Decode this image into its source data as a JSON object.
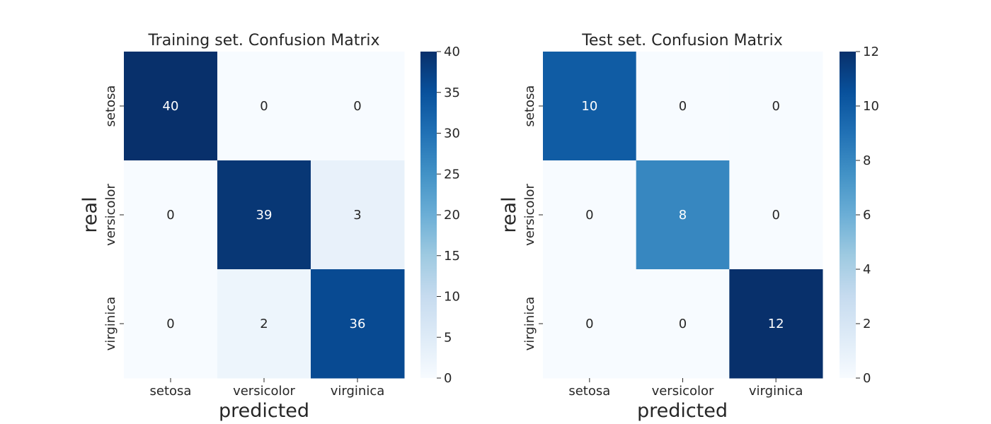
{
  "chart_data": [
    {
      "type": "heatmap",
      "title": "Training set. Confusion Matrix",
      "xlabel": "predicted",
      "ylabel": "real",
      "x_categories": [
        "setosa",
        "versicolor",
        "virginica"
      ],
      "y_categories": [
        "setosa",
        "versicolor",
        "virginica"
      ],
      "values": [
        [
          40,
          0,
          0
        ],
        [
          0,
          39,
          3
        ],
        [
          0,
          2,
          36
        ]
      ],
      "colormap": "Blues",
      "vmin": 0,
      "vmax": 40,
      "colorbar_ticks": [
        0,
        5,
        10,
        15,
        20,
        25,
        30,
        35,
        40
      ],
      "annotations": true
    },
    {
      "type": "heatmap",
      "title": "Test set. Confusion Matrix",
      "xlabel": "predicted",
      "ylabel": "real",
      "x_categories": [
        "setosa",
        "versicolor",
        "virginica"
      ],
      "y_categories": [
        "setosa",
        "versicolor",
        "virginica"
      ],
      "values": [
        [
          10,
          0,
          0
        ],
        [
          0,
          8,
          0
        ],
        [
          0,
          0,
          12
        ]
      ],
      "colormap": "Blues",
      "vmin": 0,
      "vmax": 12,
      "colorbar_ticks": [
        0,
        2,
        4,
        6,
        8,
        10,
        12
      ],
      "annotations": true
    }
  ]
}
